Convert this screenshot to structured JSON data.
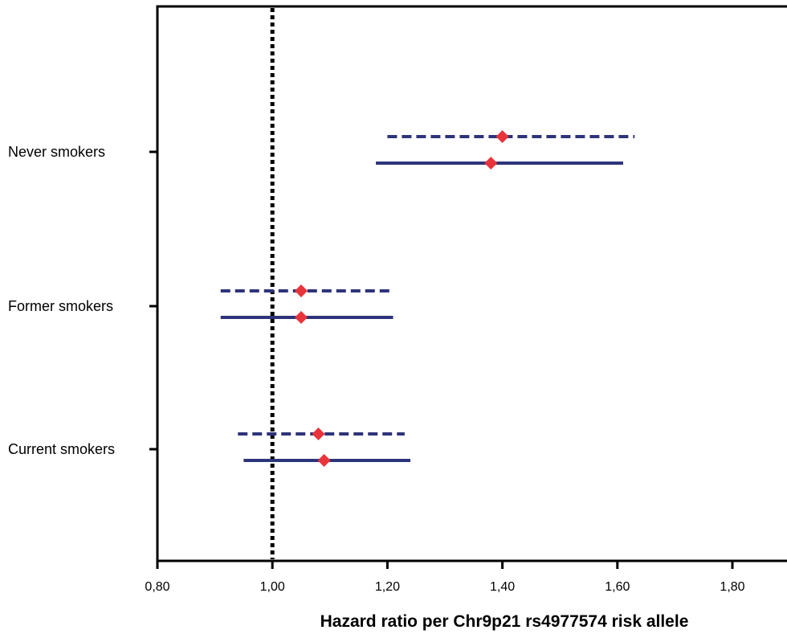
{
  "chart_data": {
    "type": "scatter",
    "subtype": "forest-plot",
    "title": "",
    "xlabel": "Hazard ratio per Chr9p21 rs4977574 risk allele",
    "ylabel": "",
    "xlim": [
      0.8,
      1.9
    ],
    "x_ticks": [
      0.8,
      1.0,
      1.2,
      1.4,
      1.6,
      1.8
    ],
    "x_tick_labels": [
      "0,80",
      "1,00",
      "1,20",
      "1,40",
      "1,60",
      "1,80"
    ],
    "reference_line": 1.0,
    "grid": false,
    "legend": "none",
    "categories": [
      "Never smokers",
      "Former smokers",
      "Current smokers"
    ],
    "series": [
      {
        "line_style": "dashed",
        "points": [
          {
            "category": "Never smokers",
            "estimate": 1.4,
            "ci_low": 1.2,
            "ci_high": 1.63
          },
          {
            "category": "Former smokers",
            "estimate": 1.05,
            "ci_low": 0.91,
            "ci_high": 1.21
          },
          {
            "category": "Current smokers",
            "estimate": 1.08,
            "ci_low": 0.94,
            "ci_high": 1.23
          }
        ]
      },
      {
        "line_style": "solid",
        "points": [
          {
            "category": "Never smokers",
            "estimate": 1.38,
            "ci_low": 1.18,
            "ci_high": 1.61
          },
          {
            "category": "Former smokers",
            "estimate": 1.05,
            "ci_low": 0.91,
            "ci_high": 1.21
          },
          {
            "category": "Current smokers",
            "estimate": 1.09,
            "ci_low": 0.95,
            "ci_high": 1.24
          }
        ]
      }
    ],
    "colors": {
      "line": "#2e3479",
      "marker": "#e8343b",
      "axis": "#000000",
      "reference": "#000000"
    }
  }
}
